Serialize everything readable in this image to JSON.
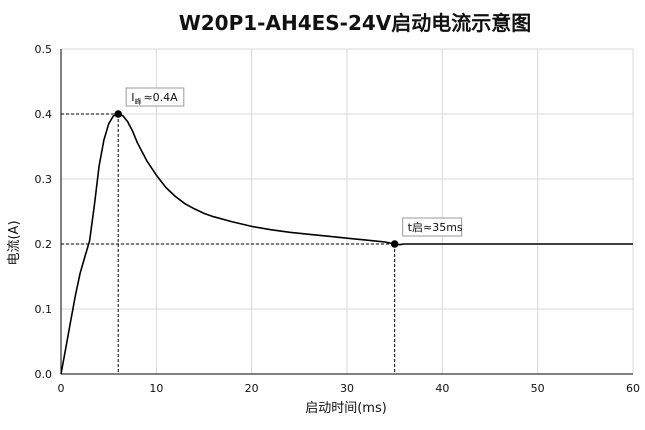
{
  "chart_data": {
    "type": "line",
    "title": "W20P1-AH4ES-24V启动电流示意图",
    "xlabel": "启动时间(ms)",
    "ylabel": "电流(A)",
    "xlim": [
      0,
      60
    ],
    "ylim": [
      0,
      0.5
    ],
    "xticks": [
      0,
      10,
      20,
      30,
      40,
      50,
      60
    ],
    "xtick_labels": [
      "0",
      "10",
      "20",
      "30",
      "40",
      "50",
      "60"
    ],
    "yticks": [
      0.0,
      0.1,
      0.2,
      0.3,
      0.4,
      0.5
    ],
    "ytick_labels": [
      "0.0",
      "0.1",
      "0.2",
      "0.3",
      "0.4",
      "0.5"
    ],
    "grid": true,
    "legend": "none",
    "line_color": "#000000",
    "series": [
      {
        "x": [
          0,
          0.5,
          1,
          1.5,
          2,
          2.5,
          3,
          3.5,
          4,
          4.5,
          5,
          5.5,
          6,
          6.5,
          7,
          7.5,
          8,
          9,
          10,
          11,
          12,
          13,
          14,
          15,
          16,
          18,
          20,
          22,
          24,
          26,
          28,
          30,
          32,
          34,
          35,
          35.5,
          36,
          37,
          38,
          40,
          45,
          50,
          55,
          60
        ],
        "y": [
          0.0,
          0.04,
          0.08,
          0.12,
          0.155,
          0.18,
          0.205,
          0.26,
          0.32,
          0.36,
          0.385,
          0.397,
          0.4,
          0.397,
          0.388,
          0.374,
          0.356,
          0.328,
          0.306,
          0.287,
          0.273,
          0.262,
          0.254,
          0.247,
          0.242,
          0.234,
          0.227,
          0.222,
          0.218,
          0.215,
          0.212,
          0.209,
          0.206,
          0.203,
          0.2,
          0.199,
          0.2,
          0.2,
          0.2,
          0.2,
          0.2,
          0.2,
          0.2,
          0.2
        ]
      }
    ],
    "points": [
      {
        "x": 6,
        "y": 0.4
      },
      {
        "x": 35,
        "y": 0.2
      }
    ],
    "annotations": [
      {
        "main": "I",
        "sub": "峰",
        "rest": "≈0.4A",
        "x": 6,
        "y": 0.4
      },
      {
        "main": "t",
        "sub": "",
        "rest": "启≈35ms",
        "x": 35,
        "y": 0.2
      }
    ]
  }
}
